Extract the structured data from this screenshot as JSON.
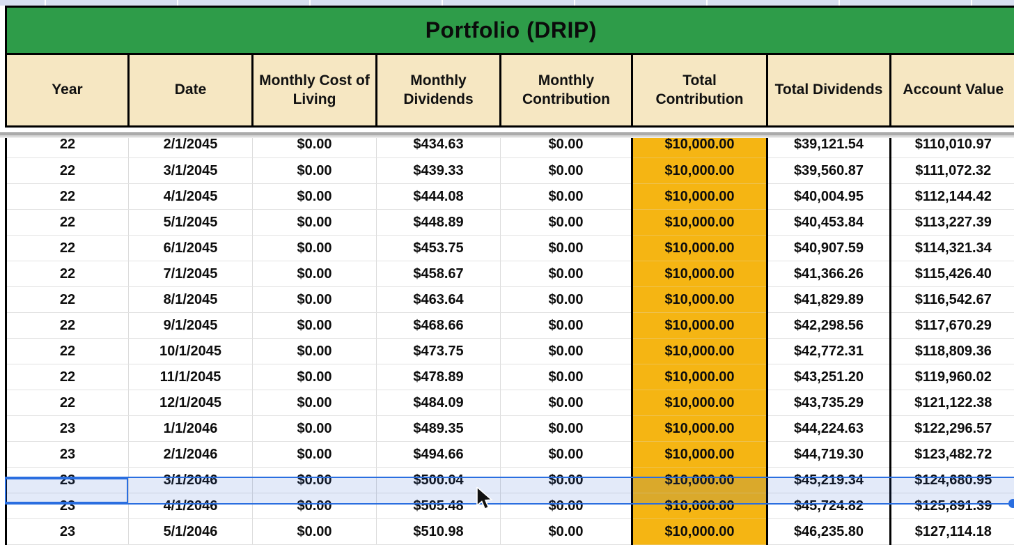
{
  "sheet": {
    "title": "Portfolio (DRIP)",
    "columns": [
      "Year",
      "Date",
      "Monthly Cost of Living",
      "Monthly Dividends",
      "Monthly Contribution",
      "Total Contribution",
      "Total Dividends",
      "Account Value"
    ],
    "rows": [
      [
        "22",
        "2/1/2045",
        "$0.00",
        "$434.63",
        "$0.00",
        "$10,000.00",
        "$39,121.54",
        "$110,010.97"
      ],
      [
        "22",
        "3/1/2045",
        "$0.00",
        "$439.33",
        "$0.00",
        "$10,000.00",
        "$39,560.87",
        "$111,072.32"
      ],
      [
        "22",
        "4/1/2045",
        "$0.00",
        "$444.08",
        "$0.00",
        "$10,000.00",
        "$40,004.95",
        "$112,144.42"
      ],
      [
        "22",
        "5/1/2045",
        "$0.00",
        "$448.89",
        "$0.00",
        "$10,000.00",
        "$40,453.84",
        "$113,227.39"
      ],
      [
        "22",
        "6/1/2045",
        "$0.00",
        "$453.75",
        "$0.00",
        "$10,000.00",
        "$40,907.59",
        "$114,321.34"
      ],
      [
        "22",
        "7/1/2045",
        "$0.00",
        "$458.67",
        "$0.00",
        "$10,000.00",
        "$41,366.26",
        "$115,426.40"
      ],
      [
        "22",
        "8/1/2045",
        "$0.00",
        "$463.64",
        "$0.00",
        "$10,000.00",
        "$41,829.89",
        "$116,542.67"
      ],
      [
        "22",
        "9/1/2045",
        "$0.00",
        "$468.66",
        "$0.00",
        "$10,000.00",
        "$42,298.56",
        "$117,670.29"
      ],
      [
        "22",
        "10/1/2045",
        "$0.00",
        "$473.75",
        "$0.00",
        "$10,000.00",
        "$42,772.31",
        "$118,809.36"
      ],
      [
        "22",
        "11/1/2045",
        "$0.00",
        "$478.89",
        "$0.00",
        "$10,000.00",
        "$43,251.20",
        "$119,960.02"
      ],
      [
        "22",
        "12/1/2045",
        "$0.00",
        "$484.09",
        "$0.00",
        "$10,000.00",
        "$43,735.29",
        "$121,122.38"
      ],
      [
        "23",
        "1/1/2046",
        "$0.00",
        "$489.35",
        "$0.00",
        "$10,000.00",
        "$44,224.63",
        "$122,296.57"
      ],
      [
        "23",
        "2/1/2046",
        "$0.00",
        "$494.66",
        "$0.00",
        "$10,000.00",
        "$44,719.30",
        "$123,482.72"
      ],
      [
        "23",
        "3/1/2046",
        "$0.00",
        "$500.04",
        "$0.00",
        "$10,000.00",
        "$45,219.34",
        "$124,680.95"
      ],
      [
        "23",
        "4/1/2046",
        "$0.00",
        "$505.48",
        "$0.00",
        "$10,000.00",
        "$45,724.82",
        "$125,891.39"
      ],
      [
        "23",
        "5/1/2046",
        "$0.00",
        "$510.98",
        "$0.00",
        "$10,000.00",
        "$46,235.80",
        "$127,114.18"
      ]
    ],
    "selection": {
      "selected_row_index": 13,
      "selected_row_date": "3/1/2046",
      "active_column": "Year",
      "active_cell_value": "23"
    },
    "colors": {
      "title_bar_green": "#2e9c49",
      "header_tan": "#f6e7c2",
      "total_contribution_orange": "#f5b513",
      "selection_blue": "#2a6ee0",
      "selection_tint": "rgba(38,96,209,0.13)",
      "grid_black": "#000000",
      "grid_gray": "#dcdcdc"
    }
  }
}
